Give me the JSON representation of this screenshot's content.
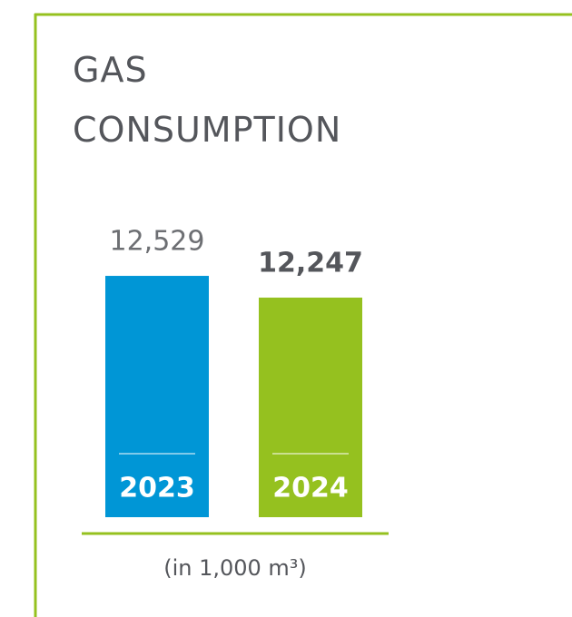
{
  "chart_data": {
    "type": "bar",
    "title": "GAS CONSUMPTION",
    "categories": [
      "2023",
      "2024"
    ],
    "values": [
      12529,
      12247
    ],
    "value_labels": [
      "12,529",
      "12,247"
    ],
    "colors": [
      "#0096d6",
      "#95c11f"
    ],
    "ylim": [
      9400,
      12600
    ],
    "unit": "(in 1,000 m³)"
  }
}
